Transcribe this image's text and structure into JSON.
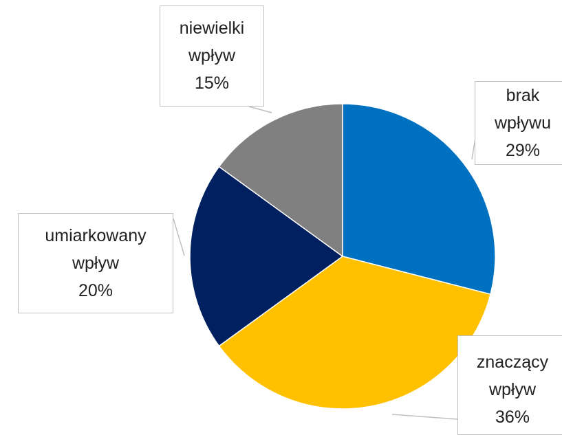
{
  "chart_data": {
    "type": "pie",
    "categories": [
      "brak wpływu",
      "znaczący wpływ",
      "umiarkowany wpływ",
      "niewielki wpływ"
    ],
    "values": [
      29,
      36,
      20,
      15
    ],
    "value_labels": [
      "29%",
      "36%",
      "20%",
      "15%"
    ],
    "colors": [
      "#0070c0",
      "#ffc000",
      "#002060",
      "#808080"
    ]
  }
}
